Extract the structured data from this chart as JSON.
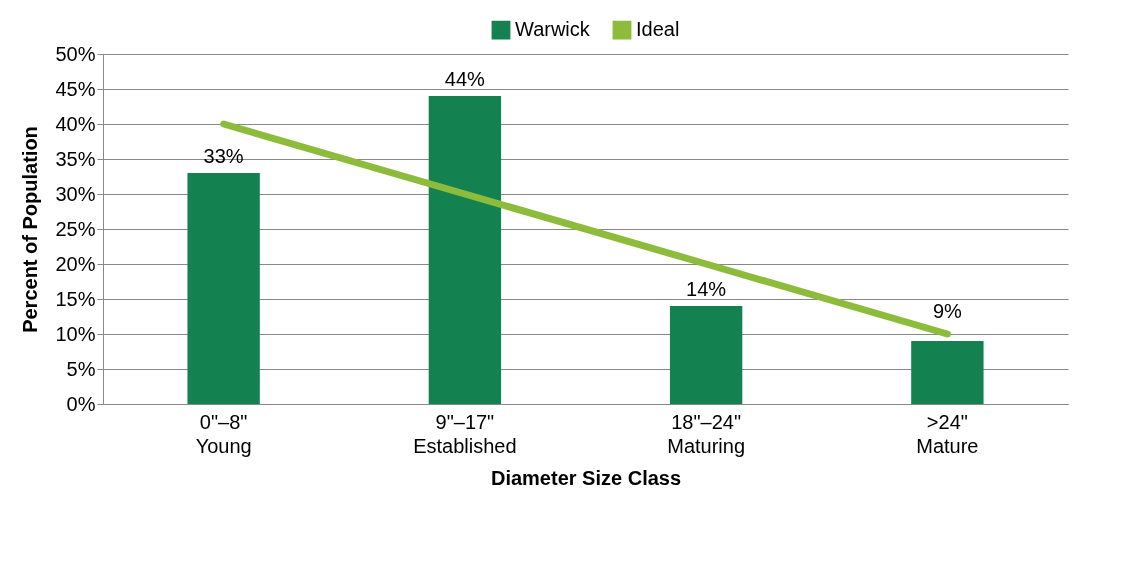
{
  "chart_data": {
    "type": "bar",
    "xlabel": "Diameter Size Class",
    "ylabel": "Percent of Population",
    "categories": [
      "0\"–8\"\nYoung",
      "9\"–17\"\nEstablished",
      "18\"–24\"\nMaturing",
      ">24\"\nMature"
    ],
    "series": [
      {
        "name": "Warwick",
        "color": "#148250",
        "values": [
          33,
          44,
          14,
          9
        ],
        "value_labels": [
          "33%",
          "44%",
          "14%",
          "9%"
        ]
      },
      {
        "name": "Ideal",
        "type": "line",
        "color": "#8dbb3c",
        "values": [
          40,
          30,
          20,
          10
        ]
      }
    ],
    "ylim": [
      0,
      50
    ],
    "yticks": [
      {
        "value": 0,
        "label": "0%"
      },
      {
        "value": 5,
        "label": "5%"
      },
      {
        "value": 10,
        "label": "10%"
      },
      {
        "value": 15,
        "label": "15%"
      },
      {
        "value": 20,
        "label": "20%"
      },
      {
        "value": 25,
        "label": "25%"
      },
      {
        "value": 30,
        "label": "30%"
      },
      {
        "value": 35,
        "label": "35%"
      },
      {
        "value": 40,
        "label": "40%"
      },
      {
        "value": 45,
        "label": "45%"
      },
      {
        "value": 50,
        "label": "50%"
      }
    ],
    "grid": "y",
    "legend": "top"
  }
}
